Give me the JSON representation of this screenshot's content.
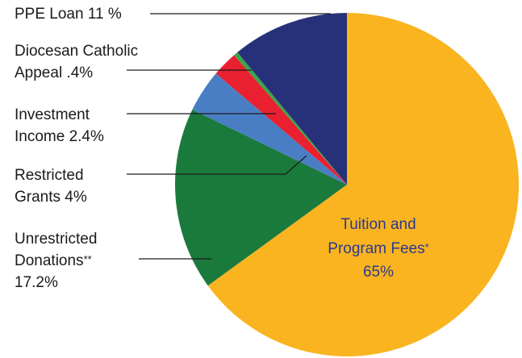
{
  "chart_data": {
    "type": "pie",
    "start": "12 o'clock, clockwise",
    "slices": [
      {
        "name": "Tuition and Program Fees",
        "value": 65.0,
        "color": "#f9b41f"
      },
      {
        "name": "Unrestricted Donations",
        "value": 17.2,
        "color": "#1a7a3c"
      },
      {
        "name": "Restricted Grants",
        "value": 4.0,
        "color": "#4a7ec4"
      },
      {
        "name": "Investment Income",
        "value": 2.4,
        "color": "#e8202f"
      },
      {
        "name": "Diocesan Catholic Appeal",
        "value": 0.4,
        "color": "#3aa64a"
      },
      {
        "name": "PPE Loan",
        "value": 11.0,
        "color": "#27317a"
      }
    ],
    "labels": {
      "ppe": {
        "text": "PPE Loan  11 %"
      },
      "diocesan": {
        "line1": "Diocesan Catholic",
        "line2": "Appeal  .4%"
      },
      "investment": {
        "line1": "Investment",
        "line2": "Income  2.4%"
      },
      "restricted": {
        "line1": "Restricted",
        "line2": "Grants  4%"
      },
      "unrestricted": {
        "line1": "Unrestricted",
        "line2_main": "Donations",
        "line2_mark": "**",
        "line3": "17.2%"
      },
      "tuition": {
        "line1": "Tuition and",
        "line2_main": "Program Fees",
        "line2_mark": "*",
        "line3": "65%"
      }
    }
  }
}
